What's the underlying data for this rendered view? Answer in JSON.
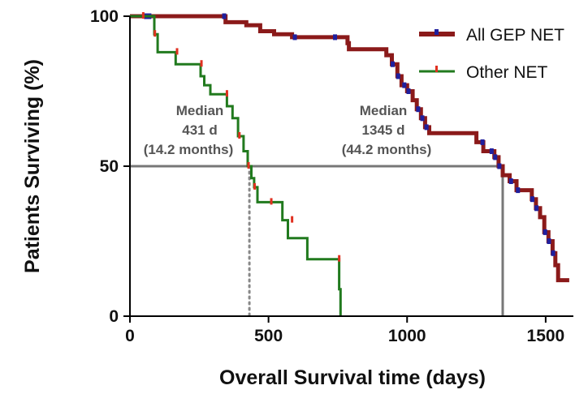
{
  "chart_data": {
    "type": "line",
    "title": "",
    "xlabel": "Overall Survival time (days)",
    "ylabel": "Patients Surviving (%)",
    "xlim": [
      0,
      1600
    ],
    "ylim": [
      0,
      100
    ],
    "x_ticks": [
      0,
      500,
      1000,
      1500
    ],
    "x_tick_labels": [
      "0",
      "500",
      "1000",
      "1500"
    ],
    "y_ticks": [
      0,
      50,
      100
    ],
    "y_tick_labels": [
      "0",
      "50",
      "100"
    ],
    "grid": false,
    "legend_position": "top-right",
    "series": [
      {
        "name": "All GEP NET",
        "color": "#8b1a1a",
        "censor_color": "#1f1f9e",
        "steps": [
          [
            0,
            100
          ],
          [
            345,
            100
          ],
          [
            345,
            98
          ],
          [
            420,
            98
          ],
          [
            420,
            97
          ],
          [
            470,
            97
          ],
          [
            470,
            95
          ],
          [
            520,
            95
          ],
          [
            520,
            94
          ],
          [
            585,
            94
          ],
          [
            585,
            93
          ],
          [
            785,
            93
          ],
          [
            785,
            91
          ],
          [
            790,
            91
          ],
          [
            790,
            89
          ],
          [
            925,
            89
          ],
          [
            925,
            87
          ],
          [
            945,
            87
          ],
          [
            945,
            84
          ],
          [
            965,
            84
          ],
          [
            965,
            80
          ],
          [
            980,
            80
          ],
          [
            980,
            77
          ],
          [
            1000,
            77
          ],
          [
            1000,
            75
          ],
          [
            1020,
            75
          ],
          [
            1020,
            72
          ],
          [
            1035,
            72
          ],
          [
            1035,
            69
          ],
          [
            1050,
            69
          ],
          [
            1050,
            66
          ],
          [
            1065,
            66
          ],
          [
            1065,
            63
          ],
          [
            1080,
            63
          ],
          [
            1080,
            61
          ],
          [
            1250,
            61
          ],
          [
            1250,
            58
          ],
          [
            1275,
            58
          ],
          [
            1275,
            55
          ],
          [
            1315,
            55
          ],
          [
            1315,
            53
          ],
          [
            1330,
            53
          ],
          [
            1330,
            50
          ],
          [
            1345,
            50
          ],
          [
            1345,
            47
          ],
          [
            1370,
            47
          ],
          [
            1370,
            45
          ],
          [
            1395,
            45
          ],
          [
            1395,
            42
          ],
          [
            1450,
            42
          ],
          [
            1450,
            39
          ],
          [
            1465,
            39
          ],
          [
            1465,
            36
          ],
          [
            1480,
            36
          ],
          [
            1480,
            33
          ],
          [
            1495,
            33
          ],
          [
            1495,
            28
          ],
          [
            1510,
            28
          ],
          [
            1510,
            25
          ],
          [
            1525,
            25
          ],
          [
            1525,
            21
          ],
          [
            1535,
            21
          ],
          [
            1535,
            17
          ],
          [
            1545,
            17
          ],
          [
            1545,
            12
          ],
          [
            1585,
            12
          ]
        ],
        "censored": [
          [
            58,
            100
          ],
          [
            70,
            100
          ],
          [
            340,
            100
          ],
          [
            595,
            93
          ],
          [
            740,
            93
          ],
          [
            948,
            84
          ],
          [
            968,
            80
          ],
          [
            990,
            77
          ],
          [
            1005,
            75
          ],
          [
            1040,
            69
          ],
          [
            1055,
            66
          ],
          [
            1070,
            63
          ],
          [
            1272,
            58
          ],
          [
            1305,
            55
          ],
          [
            1318,
            53
          ],
          [
            1333,
            50
          ],
          [
            1375,
            45
          ],
          [
            1400,
            42
          ],
          [
            1452,
            39
          ],
          [
            1467,
            36
          ],
          [
            1498,
            28
          ],
          [
            1512,
            25
          ],
          [
            1527,
            21
          ]
        ]
      },
      {
        "name": "Other NET",
        "color": "#217a1e",
        "censor_color": "#e03020",
        "steps": [
          [
            0,
            100
          ],
          [
            88,
            100
          ],
          [
            88,
            94
          ],
          [
            100,
            94
          ],
          [
            100,
            88
          ],
          [
            165,
            88
          ],
          [
            165,
            84
          ],
          [
            255,
            84
          ],
          [
            255,
            80
          ],
          [
            268,
            80
          ],
          [
            268,
            77
          ],
          [
            290,
            77
          ],
          [
            290,
            74
          ],
          [
            350,
            74
          ],
          [
            350,
            70
          ],
          [
            370,
            70
          ],
          [
            370,
            66
          ],
          [
            390,
            66
          ],
          [
            390,
            60
          ],
          [
            410,
            60
          ],
          [
            410,
            55
          ],
          [
            425,
            55
          ],
          [
            425,
            50
          ],
          [
            438,
            50
          ],
          [
            438,
            46
          ],
          [
            448,
            46
          ],
          [
            448,
            43
          ],
          [
            460,
            43
          ],
          [
            460,
            38
          ],
          [
            550,
            38
          ],
          [
            550,
            32
          ],
          [
            570,
            32
          ],
          [
            570,
            26
          ],
          [
            640,
            26
          ],
          [
            640,
            19
          ],
          [
            755,
            19
          ],
          [
            755,
            9
          ],
          [
            760,
            9
          ],
          [
            760,
            0
          ]
        ],
        "censored": [
          [
            48,
            100
          ],
          [
            90,
            94
          ],
          [
            170,
            88
          ],
          [
            258,
            84
          ],
          [
            350,
            74
          ],
          [
            395,
            60
          ],
          [
            428,
            50
          ],
          [
            450,
            43
          ],
          [
            510,
            38
          ],
          [
            585,
            32
          ],
          [
            755,
            19
          ]
        ]
      }
    ],
    "median_line": {
      "y": 50,
      "label_other": [
        "Median",
        "431 d",
        "(14.2 months)"
      ],
      "label_all": [
        "Median",
        "1345 d",
        "(44.2 months)"
      ],
      "x_other": 431,
      "x_all": 1345
    }
  }
}
